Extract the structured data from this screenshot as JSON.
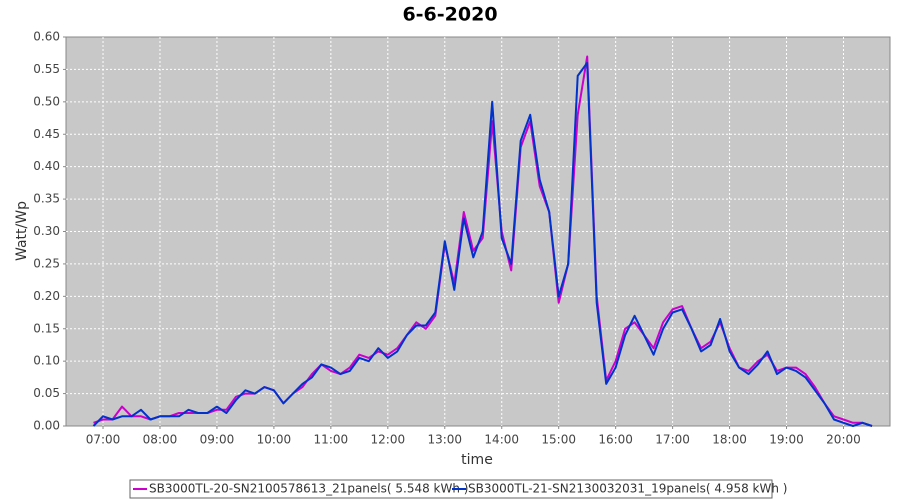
{
  "chart_data": {
    "type": "line",
    "title": "6-6-2020",
    "x_label": "time",
    "y_label": "Watt/Wp",
    "x": [
      "06:50",
      "07:00",
      "07:10",
      "07:20",
      "07:30",
      "07:40",
      "07:50",
      "08:00",
      "08:10",
      "08:20",
      "08:30",
      "08:40",
      "08:50",
      "09:00",
      "09:10",
      "09:20",
      "09:30",
      "09:40",
      "09:50",
      "10:00",
      "10:10",
      "10:20",
      "10:30",
      "10:40",
      "10:50",
      "11:00",
      "11:10",
      "11:20",
      "11:30",
      "11:40",
      "11:50",
      "12:00",
      "12:10",
      "12:20",
      "12:30",
      "12:40",
      "12:50",
      "13:00",
      "13:10",
      "13:20",
      "13:30",
      "13:40",
      "13:50",
      "14:00",
      "14:10",
      "14:20",
      "14:30",
      "14:40",
      "14:50",
      "15:00",
      "15:10",
      "15:20",
      "15:30",
      "15:40",
      "15:50",
      "16:00",
      "16:10",
      "16:20",
      "16:30",
      "16:40",
      "16:50",
      "17:00",
      "17:10",
      "17:20",
      "17:30",
      "17:40",
      "17:50",
      "18:00",
      "18:10",
      "18:20",
      "18:30",
      "18:40",
      "18:50",
      "19:00",
      "19:10",
      "19:20",
      "19:30",
      "19:40",
      "19:50",
      "20:00",
      "20:10",
      "20:20",
      "20:30"
    ],
    "series": [
      {
        "name": "SB3000TL-20-SN2100578613_21panels( 5.548 kWh )",
        "color": "#cc00cc",
        "values": [
          0.005,
          0.01,
          0.01,
          0.03,
          0.015,
          0.015,
          0.01,
          0.015,
          0.015,
          0.02,
          0.02,
          0.02,
          0.02,
          0.025,
          0.025,
          0.045,
          0.05,
          0.05,
          0.06,
          0.055,
          0.035,
          0.05,
          0.06,
          0.08,
          0.095,
          0.085,
          0.08,
          0.09,
          0.11,
          0.105,
          0.115,
          0.11,
          0.12,
          0.14,
          0.16,
          0.15,
          0.17,
          0.28,
          0.22,
          0.33,
          0.27,
          0.29,
          0.47,
          0.3,
          0.24,
          0.43,
          0.47,
          0.37,
          0.33,
          0.19,
          0.25,
          0.48,
          0.57,
          0.2,
          0.07,
          0.1,
          0.15,
          0.16,
          0.14,
          0.12,
          0.16,
          0.18,
          0.185,
          0.15,
          0.12,
          0.13,
          0.16,
          0.12,
          0.09,
          0.085,
          0.1,
          0.11,
          0.085,
          0.09,
          0.09,
          0.08,
          0.06,
          0.035,
          0.015,
          0.01,
          0.005,
          0.005,
          0.0
        ]
      },
      {
        "name": "SB3000TL-21-SN2130032031_19panels( 4.958 kWh )",
        "color": "#0033cc",
        "values": [
          0.0,
          0.015,
          0.01,
          0.015,
          0.015,
          0.025,
          0.01,
          0.015,
          0.015,
          0.015,
          0.025,
          0.02,
          0.02,
          0.03,
          0.02,
          0.04,
          0.055,
          0.05,
          0.06,
          0.055,
          0.035,
          0.05,
          0.065,
          0.075,
          0.095,
          0.09,
          0.08,
          0.085,
          0.105,
          0.1,
          0.12,
          0.105,
          0.115,
          0.14,
          0.155,
          0.155,
          0.175,
          0.285,
          0.21,
          0.32,
          0.26,
          0.3,
          0.5,
          0.29,
          0.25,
          0.44,
          0.48,
          0.38,
          0.33,
          0.2,
          0.25,
          0.54,
          0.56,
          0.19,
          0.065,
          0.09,
          0.14,
          0.17,
          0.14,
          0.11,
          0.15,
          0.175,
          0.18,
          0.15,
          0.115,
          0.125,
          0.165,
          0.115,
          0.09,
          0.08,
          0.095,
          0.115,
          0.08,
          0.09,
          0.085,
          0.075,
          0.055,
          0.035,
          0.01,
          0.005,
          0.0,
          0.005,
          0.0
        ]
      }
    ],
    "xlim": [
      "06:21",
      "20:49"
    ],
    "xticks": [
      "07:00",
      "08:00",
      "09:00",
      "10:00",
      "11:00",
      "12:00",
      "13:00",
      "14:00",
      "15:00",
      "16:00",
      "17:00",
      "18:00",
      "19:00",
      "20:00"
    ],
    "ylim": [
      0,
      0.6
    ],
    "yticks": [
      {
        "value": 0,
        "label": "0.00"
      },
      {
        "value": 0.05,
        "label": "0.05"
      },
      {
        "value": 0.1,
        "label": "0.10"
      },
      {
        "value": 0.15,
        "label": "0.15"
      },
      {
        "value": 0.2,
        "label": "0.20"
      },
      {
        "value": 0.25,
        "label": "0.25"
      },
      {
        "value": 0.3,
        "label": "0.30"
      },
      {
        "value": 0.35,
        "label": "0.35"
      },
      {
        "value": 0.4,
        "label": "0.40"
      },
      {
        "value": 0.45,
        "label": "0.45"
      },
      {
        "value": 0.5,
        "label": "0.50"
      },
      {
        "value": 0.55,
        "label": "0.55"
      },
      {
        "value": 0.6,
        "label": "0.60"
      }
    ],
    "grid": true
  }
}
